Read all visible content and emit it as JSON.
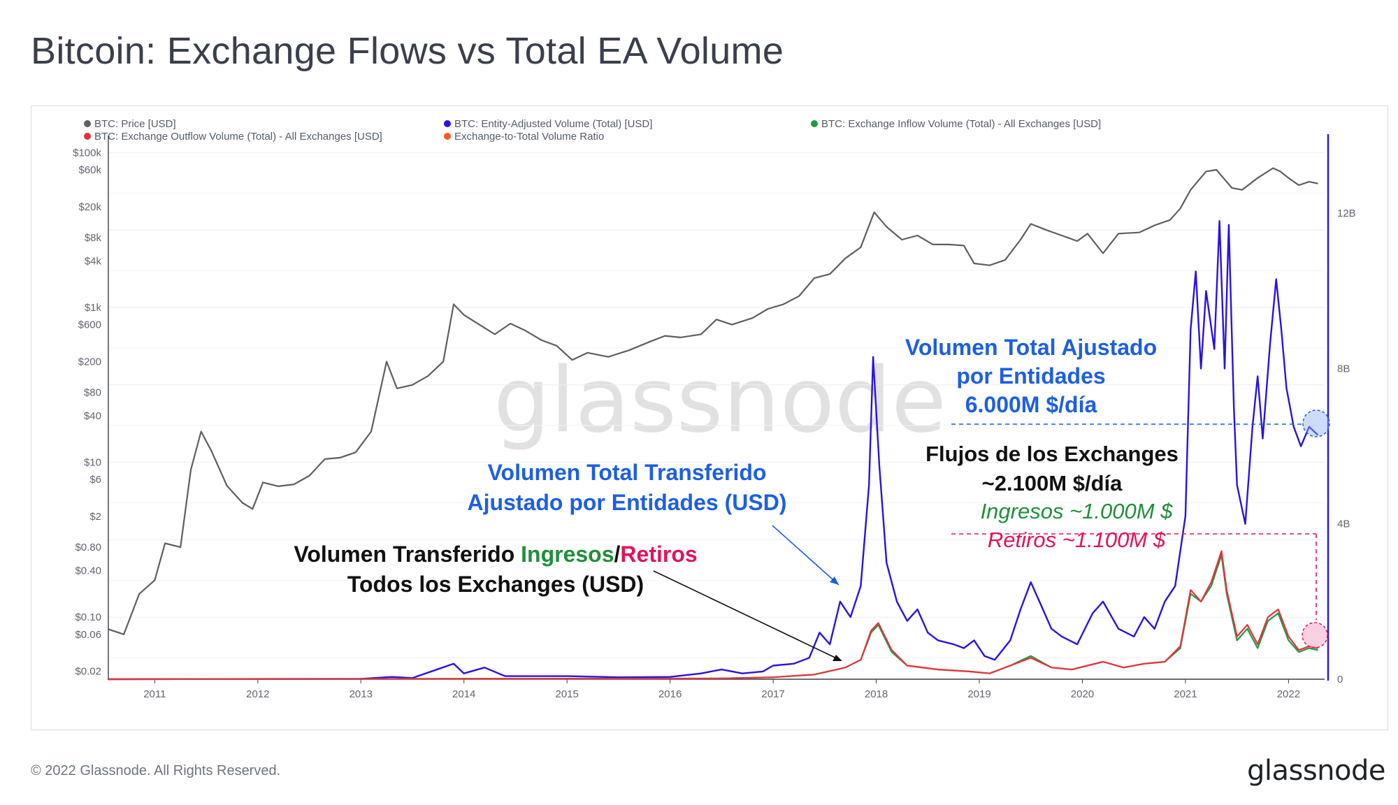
{
  "page": {
    "title": "Bitcoin: Exchange Flows vs Total EA Volume",
    "footer": "© 2022 Glassnode. All Rights Reserved.",
    "logo": "glassnode",
    "watermark": "glassnode"
  },
  "colors": {
    "price": "#5f5f5f",
    "volume": "#2a12e0",
    "inflow": "#1f9a3e",
    "outflow": "#e5323f",
    "ratio": "#ff5a1f",
    "annot_blue": "#1d5fe0",
    "annot_green": "#1f8f3a",
    "annot_red": "#e0135e"
  },
  "chart_data": {
    "type": "line",
    "legend": [
      {
        "label": "BTC: Price [USD]",
        "color": "#5f5f5f"
      },
      {
        "label": "BTC: Entity-Adjusted Volume (Total) [USD]",
        "color": "#2a12e0"
      },
      {
        "label": "BTC: Exchange Inflow Volume (Total) - All Exchanges [USD]",
        "color": "#1f9a3e"
      },
      {
        "label": "BTC: Exchange Outflow Volume (Total) - All Exchanges [USD]",
        "color": "#e5323f"
      },
      {
        "label": "Exchange-to-Total Volume Ratio",
        "color": "#ff5a1f",
        "muted": true
      }
    ],
    "x_ticks": [
      "2011",
      "2012",
      "2013",
      "2014",
      "2015",
      "2016",
      "2017",
      "2018",
      "2019",
      "2020",
      "2021",
      "2022"
    ],
    "y_left_ticks": [
      "$100k",
      "$60k",
      "$20k",
      "$8k",
      "$4k",
      "$1k",
      "$600",
      "$200",
      "$80",
      "$40",
      "$10",
      "$6",
      "$2",
      "$0.80",
      "$0.40",
      "$0.10",
      "$0.06",
      "$0.02"
    ],
    "y_left_scale": "log",
    "y_right_ticks": [
      "12B",
      "8B",
      "4B",
      "0"
    ],
    "y_right_range": [
      0,
      14000000000
    ],
    "series": [
      {
        "name": "BTC: Price [USD]",
        "axis": "left",
        "points": [
          [
            2010.55,
            0.07
          ],
          [
            2010.7,
            0.06
          ],
          [
            2010.85,
            0.2
          ],
          [
            2011.0,
            0.3
          ],
          [
            2011.1,
            0.9
          ],
          [
            2011.25,
            0.8
          ],
          [
            2011.35,
            8
          ],
          [
            2011.45,
            25
          ],
          [
            2011.55,
            14
          ],
          [
            2011.7,
            5
          ],
          [
            2011.85,
            3
          ],
          [
            2011.95,
            2.5
          ],
          [
            2012.05,
            5.5
          ],
          [
            2012.2,
            4.9
          ],
          [
            2012.35,
            5.2
          ],
          [
            2012.5,
            6.7
          ],
          [
            2012.65,
            11
          ],
          [
            2012.8,
            11.5
          ],
          [
            2012.95,
            13.5
          ],
          [
            2013.1,
            25
          ],
          [
            2013.25,
            200
          ],
          [
            2013.35,
            90
          ],
          [
            2013.5,
            100
          ],
          [
            2013.65,
            130
          ],
          [
            2013.8,
            200
          ],
          [
            2013.9,
            1100
          ],
          [
            2014.0,
            800
          ],
          [
            2014.15,
            600
          ],
          [
            2014.3,
            450
          ],
          [
            2014.45,
            620
          ],
          [
            2014.6,
            500
          ],
          [
            2014.75,
            380
          ],
          [
            2014.9,
            320
          ],
          [
            2015.05,
            210
          ],
          [
            2015.2,
            260
          ],
          [
            2015.4,
            230
          ],
          [
            2015.6,
            280
          ],
          [
            2015.8,
            360
          ],
          [
            2015.95,
            430
          ],
          [
            2016.1,
            410
          ],
          [
            2016.3,
            450
          ],
          [
            2016.45,
            700
          ],
          [
            2016.6,
            600
          ],
          [
            2016.8,
            730
          ],
          [
            2016.95,
            960
          ],
          [
            2017.1,
            1100
          ],
          [
            2017.25,
            1400
          ],
          [
            2017.4,
            2400
          ],
          [
            2017.55,
            2700
          ],
          [
            2017.7,
            4300
          ],
          [
            2017.85,
            6000
          ],
          [
            2017.98,
            17000
          ],
          [
            2018.1,
            11000
          ],
          [
            2018.25,
            7500
          ],
          [
            2018.4,
            8500
          ],
          [
            2018.55,
            6500
          ],
          [
            2018.7,
            6500
          ],
          [
            2018.85,
            6300
          ],
          [
            2018.95,
            3700
          ],
          [
            2019.1,
            3500
          ],
          [
            2019.25,
            4100
          ],
          [
            2019.4,
            7500
          ],
          [
            2019.5,
            12000
          ],
          [
            2019.65,
            10000
          ],
          [
            2019.8,
            8500
          ],
          [
            2019.95,
            7200
          ],
          [
            2020.05,
            9000
          ],
          [
            2020.2,
            5000
          ],
          [
            2020.35,
            9000
          ],
          [
            2020.55,
            9300
          ],
          [
            2020.7,
            11500
          ],
          [
            2020.85,
            13500
          ],
          [
            2020.95,
            19000
          ],
          [
            2021.05,
            33000
          ],
          [
            2021.2,
            57000
          ],
          [
            2021.3,
            60000
          ],
          [
            2021.45,
            35000
          ],
          [
            2021.55,
            33000
          ],
          [
            2021.7,
            47000
          ],
          [
            2021.85,
            63000
          ],
          [
            2021.92,
            57000
          ],
          [
            2022.0,
            47000
          ],
          [
            2022.1,
            38000
          ],
          [
            2022.2,
            42000
          ],
          [
            2022.28,
            40000
          ]
        ]
      },
      {
        "name": "BTC: Entity-Adjusted Volume (Total) [USD]",
        "axis": "right",
        "points": [
          [
            2010.55,
            0.0
          ],
          [
            2013.0,
            0.01
          ],
          [
            2013.3,
            0.06
          ],
          [
            2013.5,
            0.03
          ],
          [
            2013.9,
            0.4
          ],
          [
            2014.0,
            0.15
          ],
          [
            2014.2,
            0.3
          ],
          [
            2014.4,
            0.08
          ],
          [
            2015.0,
            0.08
          ],
          [
            2015.5,
            0.05
          ],
          [
            2016.0,
            0.06
          ],
          [
            2016.3,
            0.15
          ],
          [
            2016.5,
            0.25
          ],
          [
            2016.7,
            0.15
          ],
          [
            2016.9,
            0.2
          ],
          [
            2017.0,
            0.35
          ],
          [
            2017.2,
            0.4
          ],
          [
            2017.35,
            0.55
          ],
          [
            2017.45,
            1.2
          ],
          [
            2017.55,
            0.9
          ],
          [
            2017.65,
            2.0
          ],
          [
            2017.75,
            1.6
          ],
          [
            2017.85,
            2.4
          ],
          [
            2017.93,
            5.0
          ],
          [
            2017.97,
            8.3
          ],
          [
            2018.03,
            5.5
          ],
          [
            2018.1,
            3.0
          ],
          [
            2018.2,
            2.0
          ],
          [
            2018.3,
            1.5
          ],
          [
            2018.4,
            1.8
          ],
          [
            2018.5,
            1.2
          ],
          [
            2018.6,
            1.0
          ],
          [
            2018.75,
            0.9
          ],
          [
            2018.85,
            0.8
          ],
          [
            2018.95,
            1.0
          ],
          [
            2019.05,
            0.6
          ],
          [
            2019.15,
            0.5
          ],
          [
            2019.3,
            1.0
          ],
          [
            2019.4,
            1.8
          ],
          [
            2019.5,
            2.5
          ],
          [
            2019.6,
            1.9
          ],
          [
            2019.7,
            1.3
          ],
          [
            2019.8,
            1.1
          ],
          [
            2019.95,
            0.9
          ],
          [
            2020.1,
            1.7
          ],
          [
            2020.2,
            2.0
          ],
          [
            2020.35,
            1.3
          ],
          [
            2020.5,
            1.1
          ],
          [
            2020.6,
            1.6
          ],
          [
            2020.7,
            1.3
          ],
          [
            2020.8,
            2.0
          ],
          [
            2020.9,
            2.4
          ],
          [
            2021.0,
            4.2
          ],
          [
            2021.05,
            9.0
          ],
          [
            2021.1,
            10.5
          ],
          [
            2021.15,
            8.0
          ],
          [
            2021.2,
            10.0
          ],
          [
            2021.28,
            8.5
          ],
          [
            2021.33,
            11.8
          ],
          [
            2021.38,
            8.0
          ],
          [
            2021.42,
            11.7
          ],
          [
            2021.47,
            7.0
          ],
          [
            2021.5,
            5.0
          ],
          [
            2021.58,
            4.0
          ],
          [
            2021.65,
            6.5
          ],
          [
            2021.7,
            7.8
          ],
          [
            2021.75,
            6.2
          ],
          [
            2021.82,
            8.6
          ],
          [
            2021.88,
            10.3
          ],
          [
            2021.93,
            9.0
          ],
          [
            2021.98,
            7.5
          ],
          [
            2022.05,
            6.5
          ],
          [
            2022.12,
            6.0
          ],
          [
            2022.2,
            6.5
          ],
          [
            2022.28,
            6.3
          ]
        ]
      },
      {
        "name": "BTC: Exchange Inflow Volume (Total) - All Exchanges [USD]",
        "axis": "right",
        "points": [
          [
            2010.55,
            0.0
          ],
          [
            2016.5,
            0.02
          ],
          [
            2017.0,
            0.05
          ],
          [
            2017.4,
            0.12
          ],
          [
            2017.7,
            0.3
          ],
          [
            2017.85,
            0.5
          ],
          [
            2017.95,
            1.2
          ],
          [
            2018.02,
            1.4
          ],
          [
            2018.15,
            0.7
          ],
          [
            2018.3,
            0.35
          ],
          [
            2018.6,
            0.25
          ],
          [
            2018.9,
            0.2
          ],
          [
            2019.1,
            0.15
          ],
          [
            2019.3,
            0.35
          ],
          [
            2019.5,
            0.6
          ],
          [
            2019.7,
            0.3
          ],
          [
            2019.9,
            0.25
          ],
          [
            2020.2,
            0.45
          ],
          [
            2020.4,
            0.3
          ],
          [
            2020.6,
            0.4
          ],
          [
            2020.8,
            0.45
          ],
          [
            2020.95,
            0.8
          ],
          [
            2021.05,
            2.2
          ],
          [
            2021.15,
            2.0
          ],
          [
            2021.25,
            2.4
          ],
          [
            2021.35,
            3.2
          ],
          [
            2021.4,
            2.2
          ],
          [
            2021.45,
            1.6
          ],
          [
            2021.5,
            1.0
          ],
          [
            2021.6,
            1.3
          ],
          [
            2021.7,
            0.8
          ],
          [
            2021.8,
            1.5
          ],
          [
            2021.9,
            1.7
          ],
          [
            2022.0,
            1.0
          ],
          [
            2022.1,
            0.7
          ],
          [
            2022.2,
            0.8
          ],
          [
            2022.28,
            0.75
          ]
        ]
      },
      {
        "name": "BTC: Exchange Outflow Volume (Total) - All Exchanges [USD]",
        "axis": "right",
        "points": [
          [
            2010.55,
            0.0
          ],
          [
            2016.5,
            0.02
          ],
          [
            2017.0,
            0.05
          ],
          [
            2017.4,
            0.12
          ],
          [
            2017.7,
            0.3
          ],
          [
            2017.85,
            0.5
          ],
          [
            2017.95,
            1.25
          ],
          [
            2018.02,
            1.45
          ],
          [
            2018.15,
            0.75
          ],
          [
            2018.3,
            0.35
          ],
          [
            2018.6,
            0.25
          ],
          [
            2018.9,
            0.2
          ],
          [
            2019.1,
            0.15
          ],
          [
            2019.3,
            0.35
          ],
          [
            2019.5,
            0.55
          ],
          [
            2019.7,
            0.3
          ],
          [
            2019.9,
            0.25
          ],
          [
            2020.2,
            0.45
          ],
          [
            2020.4,
            0.3
          ],
          [
            2020.6,
            0.4
          ],
          [
            2020.8,
            0.45
          ],
          [
            2020.95,
            0.85
          ],
          [
            2021.05,
            2.3
          ],
          [
            2021.15,
            2.0
          ],
          [
            2021.25,
            2.5
          ],
          [
            2021.35,
            3.3
          ],
          [
            2021.4,
            2.3
          ],
          [
            2021.45,
            1.7
          ],
          [
            2021.5,
            1.1
          ],
          [
            2021.6,
            1.4
          ],
          [
            2021.7,
            0.9
          ],
          [
            2021.8,
            1.6
          ],
          [
            2021.9,
            1.8
          ],
          [
            2022.0,
            1.1
          ],
          [
            2022.1,
            0.75
          ],
          [
            2022.2,
            0.85
          ],
          [
            2022.28,
            0.8
          ]
        ]
      }
    ]
  },
  "annotations": {
    "ea_total_line1": "Volumen Total Ajustado",
    "ea_total_line2": "por Entidades",
    "ea_total_line3": "6.000M $/día",
    "transferred_line1": "Volumen Total Transferido",
    "transferred_line2": "Ajustado por Entidades (USD)",
    "exchange_flows_line1": "Flujos de los Exchanges",
    "exchange_flows_line2": "~2.100M $/día",
    "inflows": "Ingresos ~1.000M $",
    "outflows": "Retiros ~1.100M $",
    "io_prefix": "Volumen Transferido ",
    "io_inflow_word": "Ingresos",
    "io_slash": "/",
    "io_outflow_word": "Retiros",
    "io_line2": "Todos los Exchanges (USD)"
  }
}
